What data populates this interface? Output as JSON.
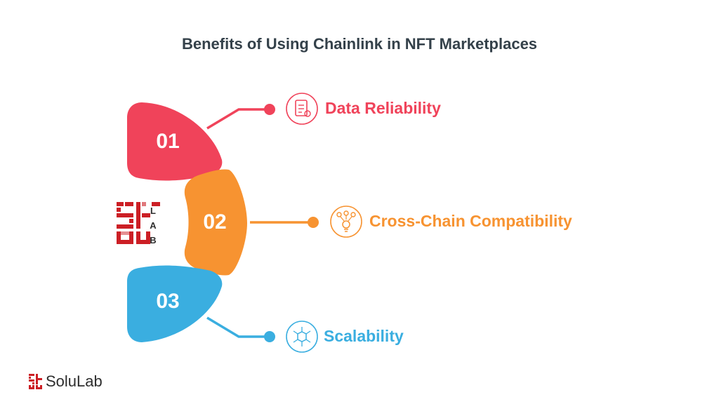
{
  "title": "Benefits of Using Chainlink in NFT Marketplaces",
  "colors": {
    "red": "#f0435a",
    "orange": "#f79331",
    "blue": "#3aaee0",
    "title": "#34414a",
    "brand_red": "#cc1f25"
  },
  "items": [
    {
      "number": "01",
      "label": "Data Reliability",
      "icon": "report-document-icon",
      "color": "#f0435a"
    },
    {
      "number": "02",
      "label": "Cross-Chain Compatibility",
      "icon": "lightbulb-network-icon",
      "color": "#f79331"
    },
    {
      "number": "03",
      "label": "Scalability",
      "icon": "network-cube-icon",
      "color": "#3aaee0"
    }
  ],
  "center_logo": {
    "letters": [
      "L",
      "A",
      "B"
    ]
  },
  "footer": {
    "brand": "SoluLab"
  }
}
